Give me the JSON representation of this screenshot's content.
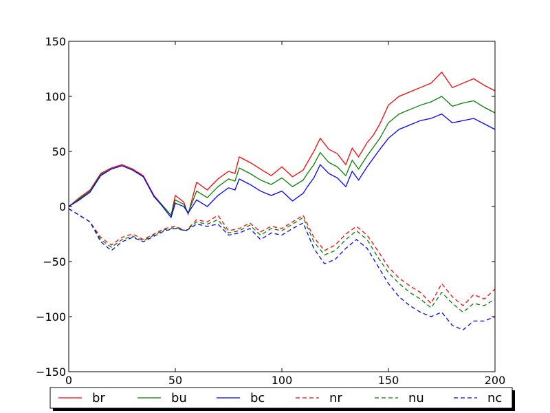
{
  "chart_data": {
    "type": "line",
    "title": "",
    "xlabel": "",
    "ylabel": "",
    "xlim": [
      0,
      200
    ],
    "ylim": [
      -150,
      150
    ],
    "x_ticks": [
      "0",
      "50",
      "100",
      "150",
      "200"
    ],
    "y_ticks": [
      "150",
      "100",
      "50",
      "0",
      "−50",
      "−100",
      "−150"
    ],
    "y_tick_values": [
      150,
      100,
      50,
      0,
      -50,
      -100,
      -150
    ],
    "x_tick_values": [
      0,
      50,
      100,
      150,
      200
    ],
    "grid": false,
    "legend_placement": "bottom",
    "series": [
      {
        "name": "br",
        "color": "#ff0000",
        "dash": "solid",
        "points": [
          [
            0,
            0
          ],
          [
            5,
            8
          ],
          [
            10,
            15
          ],
          [
            15,
            30
          ],
          [
            20,
            35
          ],
          [
            25,
            38
          ],
          [
            30,
            34
          ],
          [
            35,
            28
          ],
          [
            40,
            10
          ],
          [
            44,
            1
          ],
          [
            48,
            -8
          ],
          [
            50,
            10
          ],
          [
            54,
            4
          ],
          [
            56,
            -7
          ],
          [
            60,
            22
          ],
          [
            65,
            15
          ],
          [
            70,
            25
          ],
          [
            75,
            32
          ],
          [
            78,
            30
          ],
          [
            80,
            45
          ],
          [
            85,
            40
          ],
          [
            90,
            34
          ],
          [
            95,
            28
          ],
          [
            100,
            36
          ],
          [
            105,
            27
          ],
          [
            110,
            33
          ],
          [
            112,
            40
          ],
          [
            115,
            50
          ],
          [
            118,
            62
          ],
          [
            122,
            52
          ],
          [
            126,
            48
          ],
          [
            130,
            38
          ],
          [
            133,
            53
          ],
          [
            136,
            45
          ],
          [
            140,
            58
          ],
          [
            143,
            65
          ],
          [
            146,
            75
          ],
          [
            150,
            92
          ],
          [
            155,
            100
          ],
          [
            160,
            104
          ],
          [
            165,
            108
          ],
          [
            170,
            112
          ],
          [
            175,
            122
          ],
          [
            180,
            108
          ],
          [
            185,
            112
          ],
          [
            190,
            116
          ],
          [
            195,
            110
          ],
          [
            200,
            105
          ]
        ]
      },
      {
        "name": "bu",
        "color": "#008000",
        "dash": "solid",
        "points": [
          [
            0,
            0
          ],
          [
            5,
            7
          ],
          [
            10,
            14
          ],
          [
            15,
            29
          ],
          [
            20,
            34
          ],
          [
            25,
            37
          ],
          [
            30,
            33
          ],
          [
            35,
            27
          ],
          [
            40,
            9
          ],
          [
            44,
            1
          ],
          [
            48,
            -8
          ],
          [
            50,
            6
          ],
          [
            54,
            2
          ],
          [
            56,
            -6
          ],
          [
            60,
            14
          ],
          [
            65,
            8
          ],
          [
            70,
            18
          ],
          [
            75,
            25
          ],
          [
            78,
            23
          ],
          [
            80,
            35
          ],
          [
            85,
            30
          ],
          [
            90,
            24
          ],
          [
            95,
            20
          ],
          [
            100,
            26
          ],
          [
            105,
            18
          ],
          [
            110,
            24
          ],
          [
            112,
            30
          ],
          [
            115,
            38
          ],
          [
            118,
            49
          ],
          [
            122,
            40
          ],
          [
            126,
            36
          ],
          [
            130,
            28
          ],
          [
            133,
            42
          ],
          [
            136,
            34
          ],
          [
            140,
            46
          ],
          [
            143,
            54
          ],
          [
            146,
            62
          ],
          [
            150,
            76
          ],
          [
            155,
            84
          ],
          [
            160,
            88
          ],
          [
            165,
            92
          ],
          [
            170,
            95
          ],
          [
            175,
            100
          ],
          [
            180,
            91
          ],
          [
            185,
            94
          ],
          [
            190,
            96
          ],
          [
            195,
            90
          ],
          [
            200,
            85
          ]
        ]
      },
      {
        "name": "bc",
        "color": "#0000ff",
        "dash": "solid",
        "points": [
          [
            0,
            0
          ],
          [
            5,
            6
          ],
          [
            10,
            13
          ],
          [
            15,
            28
          ],
          [
            20,
            34
          ],
          [
            25,
            37
          ],
          [
            30,
            33
          ],
          [
            35,
            27
          ],
          [
            40,
            9
          ],
          [
            44,
            0
          ],
          [
            48,
            -10
          ],
          [
            50,
            3
          ],
          [
            54,
            0
          ],
          [
            56,
            -6
          ],
          [
            60,
            6
          ],
          [
            65,
            0
          ],
          [
            70,
            10
          ],
          [
            75,
            17
          ],
          [
            78,
            15
          ],
          [
            80,
            25
          ],
          [
            85,
            20
          ],
          [
            90,
            14
          ],
          [
            95,
            10
          ],
          [
            100,
            14
          ],
          [
            105,
            5
          ],
          [
            110,
            12
          ],
          [
            112,
            18
          ],
          [
            115,
            26
          ],
          [
            118,
            38
          ],
          [
            122,
            30
          ],
          [
            126,
            26
          ],
          [
            130,
            18
          ],
          [
            133,
            32
          ],
          [
            136,
            24
          ],
          [
            140,
            36
          ],
          [
            143,
            44
          ],
          [
            146,
            52
          ],
          [
            150,
            62
          ],
          [
            155,
            70
          ],
          [
            160,
            74
          ],
          [
            165,
            78
          ],
          [
            170,
            80
          ],
          [
            175,
            84
          ],
          [
            180,
            76
          ],
          [
            185,
            78
          ],
          [
            190,
            80
          ],
          [
            195,
            75
          ],
          [
            200,
            70
          ]
        ]
      },
      {
        "name": "nr",
        "color": "#ff0000",
        "dash": "dashed",
        "points": [
          [
            0,
            -2
          ],
          [
            5,
            -8
          ],
          [
            10,
            -14
          ],
          [
            15,
            -28
          ],
          [
            20,
            -35
          ],
          [
            25,
            -28
          ],
          [
            30,
            -25
          ],
          [
            35,
            -30
          ],
          [
            40,
            -25
          ],
          [
            45,
            -20
          ],
          [
            50,
            -18
          ],
          [
            55,
            -22
          ],
          [
            60,
            -12
          ],
          [
            65,
            -14
          ],
          [
            70,
            -8
          ],
          [
            75,
            -22
          ],
          [
            80,
            -20
          ],
          [
            85,
            -15
          ],
          [
            90,
            -23
          ],
          [
            95,
            -18
          ],
          [
            100,
            -20
          ],
          [
            105,
            -14
          ],
          [
            110,
            -8
          ],
          [
            115,
            -28
          ],
          [
            120,
            -40
          ],
          [
            125,
            -35
          ],
          [
            130,
            -25
          ],
          [
            135,
            -18
          ],
          [
            140,
            -26
          ],
          [
            145,
            -40
          ],
          [
            150,
            -55
          ],
          [
            155,
            -65
          ],
          [
            160,
            -72
          ],
          [
            165,
            -78
          ],
          [
            170,
            -88
          ],
          [
            175,
            -70
          ],
          [
            180,
            -82
          ],
          [
            185,
            -90
          ],
          [
            190,
            -80
          ],
          [
            195,
            -84
          ],
          [
            200,
            -75
          ]
        ]
      },
      {
        "name": "nu",
        "color": "#008000",
        "dash": "dashed",
        "points": [
          [
            0,
            -2
          ],
          [
            5,
            -8
          ],
          [
            10,
            -14
          ],
          [
            15,
            -30
          ],
          [
            20,
            -37
          ],
          [
            25,
            -30
          ],
          [
            30,
            -27
          ],
          [
            35,
            -31
          ],
          [
            40,
            -26
          ],
          [
            45,
            -21
          ],
          [
            50,
            -19
          ],
          [
            55,
            -22
          ],
          [
            60,
            -14
          ],
          [
            65,
            -16
          ],
          [
            70,
            -12
          ],
          [
            75,
            -24
          ],
          [
            80,
            -22
          ],
          [
            85,
            -17
          ],
          [
            90,
            -26
          ],
          [
            95,
            -20
          ],
          [
            100,
            -22
          ],
          [
            105,
            -16
          ],
          [
            110,
            -10
          ],
          [
            115,
            -32
          ],
          [
            120,
            -44
          ],
          [
            125,
            -40
          ],
          [
            130,
            -30
          ],
          [
            135,
            -22
          ],
          [
            140,
            -30
          ],
          [
            145,
            -46
          ],
          [
            150,
            -60
          ],
          [
            155,
            -70
          ],
          [
            160,
            -78
          ],
          [
            165,
            -84
          ],
          [
            170,
            -92
          ],
          [
            175,
            -78
          ],
          [
            180,
            -88
          ],
          [
            185,
            -96
          ],
          [
            190,
            -88
          ],
          [
            195,
            -90
          ],
          [
            200,
            -84
          ]
        ]
      },
      {
        "name": "nc",
        "color": "#0000ff",
        "dash": "dashed",
        "points": [
          [
            0,
            -2
          ],
          [
            5,
            -8
          ],
          [
            10,
            -14
          ],
          [
            15,
            -32
          ],
          [
            20,
            -40
          ],
          [
            25,
            -32
          ],
          [
            30,
            -28
          ],
          [
            35,
            -32
          ],
          [
            40,
            -27
          ],
          [
            45,
            -22
          ],
          [
            50,
            -20
          ],
          [
            55,
            -22
          ],
          [
            60,
            -16
          ],
          [
            65,
            -18
          ],
          [
            70,
            -16
          ],
          [
            75,
            -26
          ],
          [
            80,
            -24
          ],
          [
            85,
            -20
          ],
          [
            90,
            -30
          ],
          [
            95,
            -24
          ],
          [
            100,
            -26
          ],
          [
            105,
            -20
          ],
          [
            110,
            -15
          ],
          [
            115,
            -38
          ],
          [
            120,
            -52
          ],
          [
            125,
            -48
          ],
          [
            130,
            -38
          ],
          [
            135,
            -30
          ],
          [
            140,
            -38
          ],
          [
            145,
            -54
          ],
          [
            150,
            -70
          ],
          [
            155,
            -82
          ],
          [
            160,
            -90
          ],
          [
            165,
            -96
          ],
          [
            170,
            -100
          ],
          [
            175,
            -96
          ],
          [
            180,
            -108
          ],
          [
            185,
            -112
          ],
          [
            190,
            -104
          ],
          [
            195,
            -104
          ],
          [
            200,
            -100
          ]
        ]
      }
    ]
  }
}
